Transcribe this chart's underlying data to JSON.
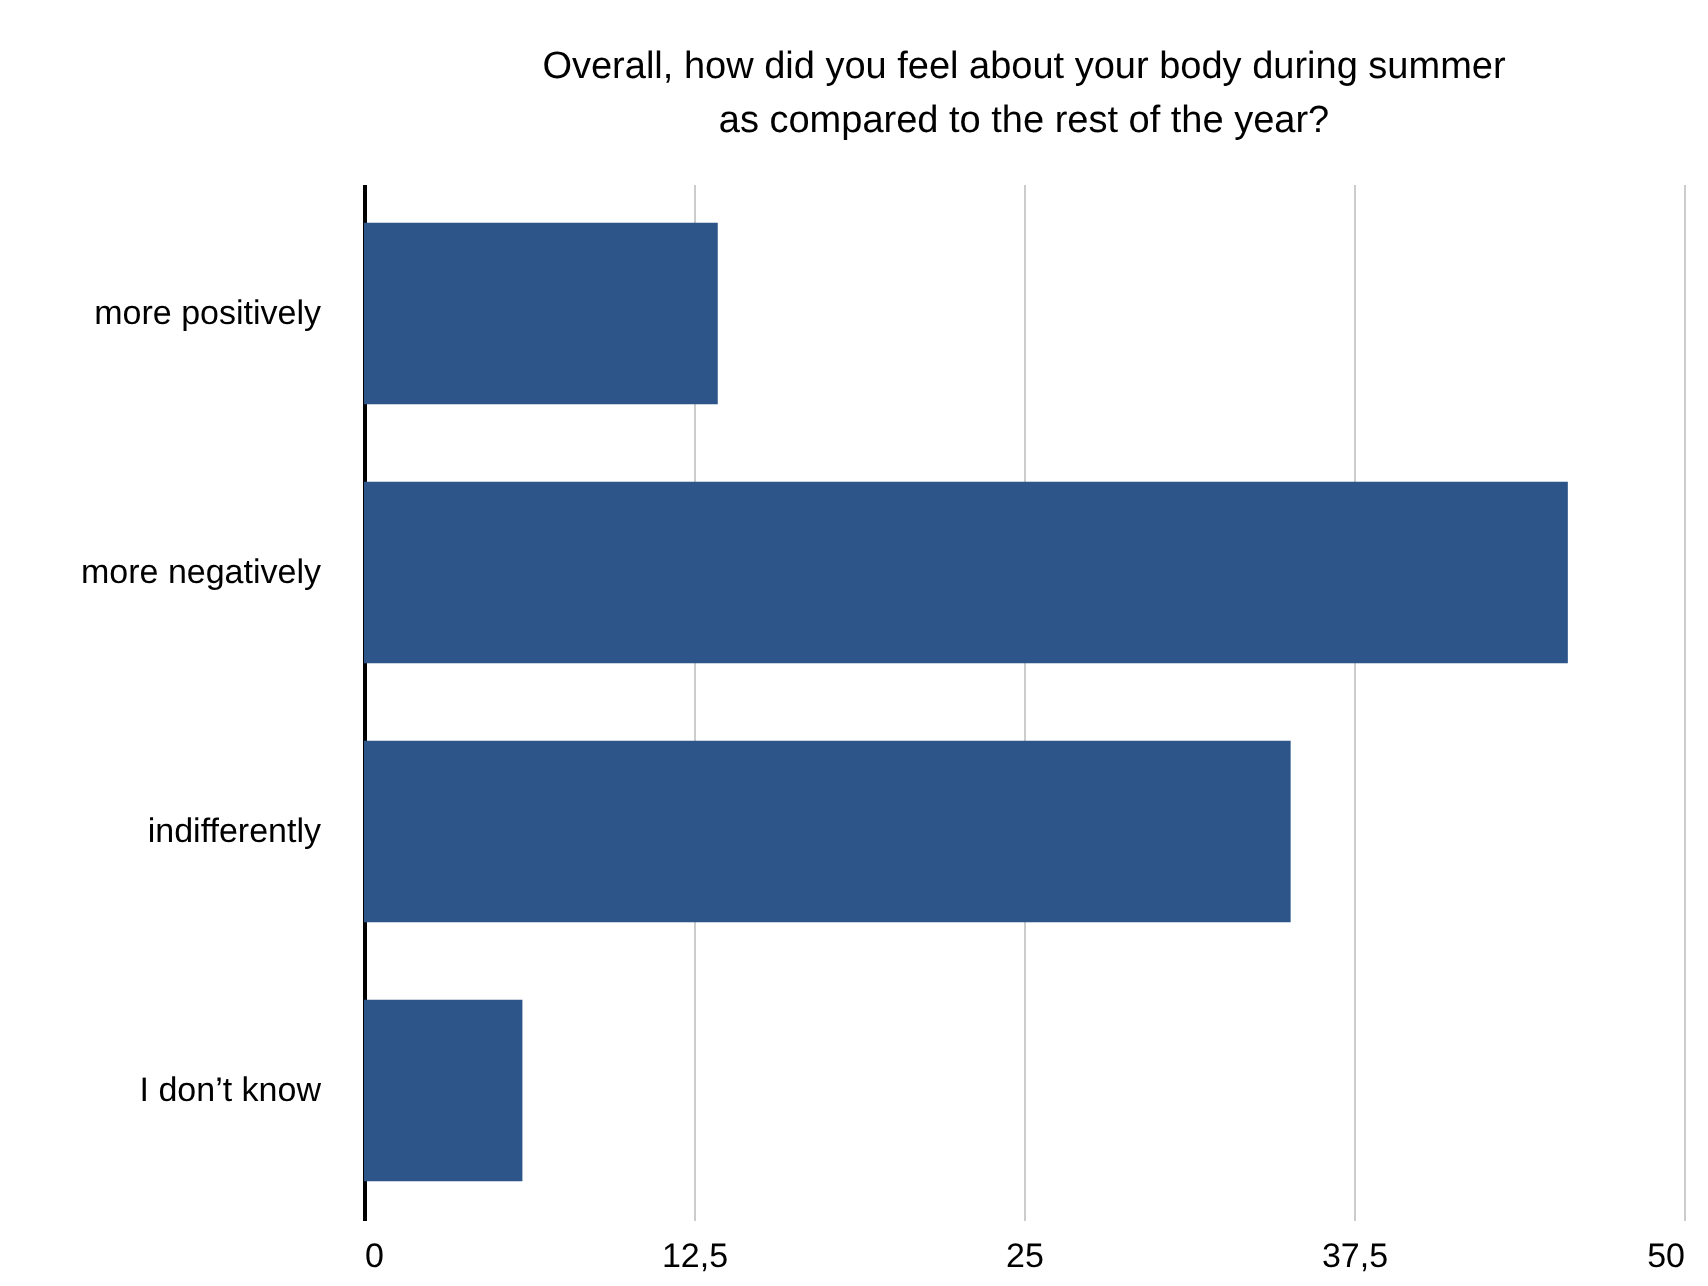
{
  "chart_data": {
    "type": "bar",
    "orientation": "horizontal",
    "title": "Overall, how did you feel about your body during summer as compared to the rest of the year?",
    "categories": [
      "more positively",
      "more negatively",
      "indifferently",
      "I don’t know"
    ],
    "values": [
      13.4,
      45.6,
      35.1,
      6.0
    ],
    "color": "#2d5589",
    "xlim": [
      0,
      50
    ],
    "xticks": [
      0,
      {
        "value": 12.5,
        "label": "12,5"
      },
      25,
      {
        "value": 37.5,
        "label": "37,5"
      },
      50
    ],
    "grid": "x"
  }
}
